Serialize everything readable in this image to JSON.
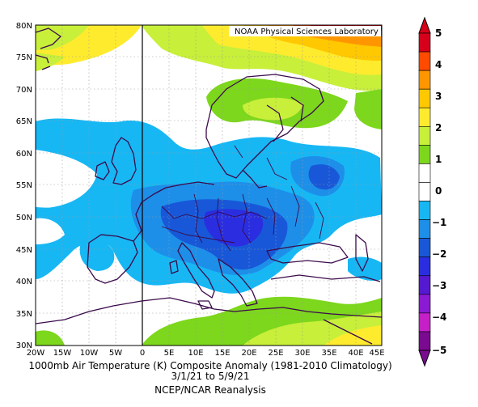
{
  "credit": "NOAA Physical Sciences Laboratory",
  "title_line1": "1000mb Air Temperature (K) Composite Anomaly (1981-2010 Climatology)",
  "title_line2": "3/1/21 to 5/9/21",
  "title_line3": "NCEP/NCAR Reanalysis",
  "lat_labels": [
    "80N",
    "75N",
    "70N",
    "65N",
    "60N",
    "55N",
    "50N",
    "45N",
    "40N",
    "35N",
    "30N"
  ],
  "lon_labels": [
    "20W",
    "15W",
    "10W",
    "5W",
    "0",
    "5E",
    "10E",
    "15E",
    "20E",
    "25E",
    "30E",
    "35E",
    "40E",
    "45E"
  ],
  "colorbar": {
    "labels": [
      "5",
      "4",
      "3",
      "2",
      "1",
      "0",
      "−1",
      "−2",
      "−3",
      "−4",
      "−5"
    ],
    "colors": [
      "#d6001a",
      "#ff4a00",
      "#ff9600",
      "#ffc800",
      "#ffeb2e",
      "#c8ef3a",
      "#7dd71c",
      "#ffffff",
      "#ffffff",
      "#17b7f4",
      "#1d8fe9",
      "#1858d8",
      "#2a2ee0",
      "#5519d2",
      "#8c1ad4",
      "#c51fc8",
      "#7a0a90"
    ]
  },
  "map_data": {
    "lon_range": [
      -20,
      45
    ],
    "lat_range": [
      30,
      80
    ],
    "field": "1000mb air temperature composite anomaly",
    "units": "K"
  }
}
